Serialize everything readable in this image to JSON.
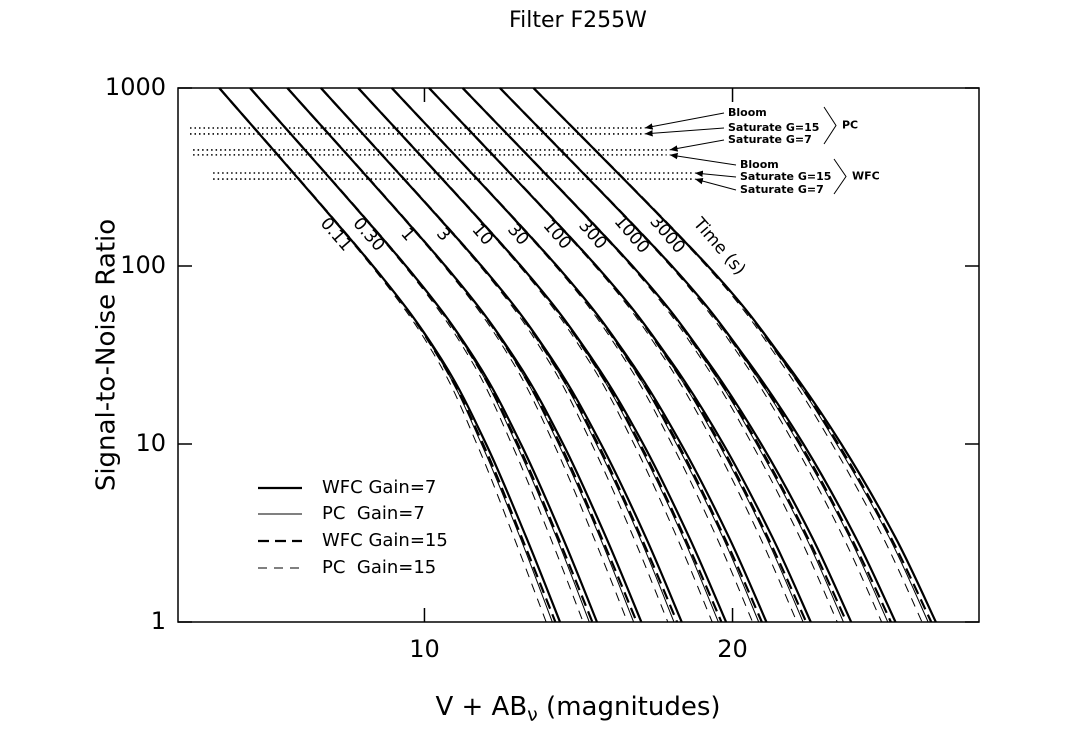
{
  "chart_data": {
    "type": "line",
    "title": "Filter F255W",
    "x_label": "V + AB",
    "x_label_sub": "ν",
    "x_label_suffix": " (magnitudes)",
    "y_label": "Signal-to-Noise Ratio",
    "xlim": [
      2,
      28
    ],
    "xticks": [
      10,
      20
    ],
    "ylim": [
      1,
      1000
    ],
    "yticks": [
      1,
      10,
      100,
      1000
    ],
    "log_y": true,
    "legend": "lower left",
    "color": "#000000",
    "snr_levels": [
      1000,
      100,
      30,
      10,
      3,
      1
    ],
    "series": [
      {
        "name": "WFC Gain=7",
        "style": "solid",
        "weight": "thick",
        "curves": [
          [
            3.34,
            8.33,
            10.55,
            12.0,
            13.3,
            14.4
          ],
          [
            4.34,
            9.4,
            11.64,
            13.13,
            14.48,
            15.6
          ],
          [
            5.55,
            10.68,
            12.95,
            14.5,
            15.89,
            17.04
          ],
          [
            6.64,
            11.85,
            14.14,
            15.73,
            17.18,
            18.35
          ],
          [
            7.85,
            13.13,
            15.45,
            17.1,
            18.59,
            19.79
          ],
          [
            8.94,
            14.3,
            16.64,
            18.33,
            19.88,
            21.1
          ],
          [
            10.15,
            15.58,
            17.95,
            19.7,
            21.29,
            22.54
          ],
          [
            11.24,
            16.75,
            19.14,
            20.93,
            22.58,
            23.85
          ],
          [
            12.45,
            18.03,
            20.45,
            22.3,
            23.99,
            25.29
          ],
          [
            13.54,
            19.2,
            21.64,
            23.53,
            25.28,
            26.6
          ]
        ]
      },
      {
        "name": "PC  Gain=7",
        "style": "solid",
        "weight": "thin",
        "curves": [
          [
            3.34,
            8.33,
            10.5,
            11.85,
            13.1,
            14.15
          ],
          [
            4.34,
            9.4,
            11.59,
            12.98,
            14.28,
            15.35
          ],
          [
            5.55,
            10.68,
            12.9,
            14.35,
            15.69,
            16.79
          ],
          [
            6.64,
            11.85,
            14.09,
            15.58,
            16.98,
            18.1
          ],
          [
            7.85,
            13.13,
            15.4,
            16.95,
            18.39,
            19.54
          ],
          [
            8.94,
            14.3,
            16.59,
            18.18,
            19.68,
            20.85
          ],
          [
            10.15,
            15.58,
            17.9,
            19.55,
            21.09,
            22.29
          ],
          [
            11.24,
            16.75,
            19.09,
            20.78,
            22.38,
            23.6
          ],
          [
            12.45,
            18.03,
            20.4,
            22.15,
            23.79,
            25.04
          ],
          [
            13.54,
            19.2,
            21.59,
            23.38,
            25.08,
            26.35
          ]
        ]
      },
      {
        "name": "WFC Gain=15",
        "style": "dashed",
        "weight": "thick",
        "curves": [
          [
            3.34,
            8.33,
            10.5,
            11.9,
            13.15,
            14.25
          ],
          [
            4.34,
            9.4,
            11.59,
            13.03,
            14.33,
            15.45
          ],
          [
            5.55,
            10.68,
            12.9,
            14.4,
            15.74,
            16.89
          ],
          [
            6.64,
            11.85,
            14.09,
            15.63,
            17.03,
            18.2
          ],
          [
            7.85,
            13.13,
            15.4,
            17.0,
            18.44,
            19.64
          ],
          [
            8.94,
            14.3,
            16.59,
            18.23,
            19.73,
            20.95
          ],
          [
            10.15,
            15.58,
            17.9,
            19.6,
            21.14,
            22.39
          ],
          [
            11.24,
            16.75,
            19.09,
            20.83,
            22.43,
            23.7
          ],
          [
            12.45,
            18.03,
            20.4,
            22.2,
            23.84,
            25.14
          ],
          [
            13.54,
            19.2,
            21.59,
            23.43,
            25.13,
            26.45
          ]
        ]
      },
      {
        "name": "PC  Gain=15",
        "style": "dashed",
        "weight": "thin",
        "curves": [
          [
            3.34,
            8.28,
            10.4,
            11.7,
            12.9,
            13.95
          ],
          [
            4.34,
            9.35,
            11.49,
            12.83,
            14.08,
            15.15
          ],
          [
            5.55,
            10.63,
            12.8,
            14.2,
            15.49,
            16.59
          ],
          [
            6.64,
            11.8,
            13.99,
            15.43,
            16.78,
            17.9
          ],
          [
            7.85,
            13.08,
            15.3,
            16.8,
            18.19,
            19.34
          ],
          [
            8.94,
            14.25,
            16.49,
            18.03,
            19.48,
            20.65
          ],
          [
            10.15,
            15.53,
            17.8,
            19.4,
            20.89,
            22.09
          ],
          [
            11.24,
            16.7,
            18.99,
            20.63,
            22.18,
            23.4
          ],
          [
            12.45,
            17.98,
            20.3,
            22.0,
            23.59,
            24.84
          ],
          [
            13.54,
            19.15,
            21.49,
            23.23,
            24.88,
            26.15
          ]
        ]
      }
    ],
    "time_labels": [
      "0.11",
      "0.30",
      "1",
      "3",
      "10",
      "30",
      "100",
      "300",
      "1000",
      "3000"
    ],
    "time_title": "Time (s)",
    "saturation": [
      {
        "label": "PC",
        "levels": [
          {
            "label": "Bloom",
            "value": 596,
            "x": [
              2.39,
              17.05
            ]
          },
          {
            "label": "Saturate G=15",
            "value": 552,
            "x": [
              2.39,
              17.05
            ]
          },
          {
            "label": "Saturate G=7",
            "value": 449,
            "x": [
              2.49,
              17.86
            ]
          }
        ]
      },
      {
        "label": "WFC",
        "levels": [
          {
            "label": "Bloom",
            "value": 421,
            "x": [
              2.49,
              17.86
            ]
          },
          {
            "label": "Saturate G=15",
            "value": 333,
            "x": [
              3.14,
              18.68
            ]
          },
          {
            "label": "Saturate G=7",
            "value": 308,
            "x": [
              3.14,
              18.68
            ]
          }
        ]
      }
    ]
  }
}
